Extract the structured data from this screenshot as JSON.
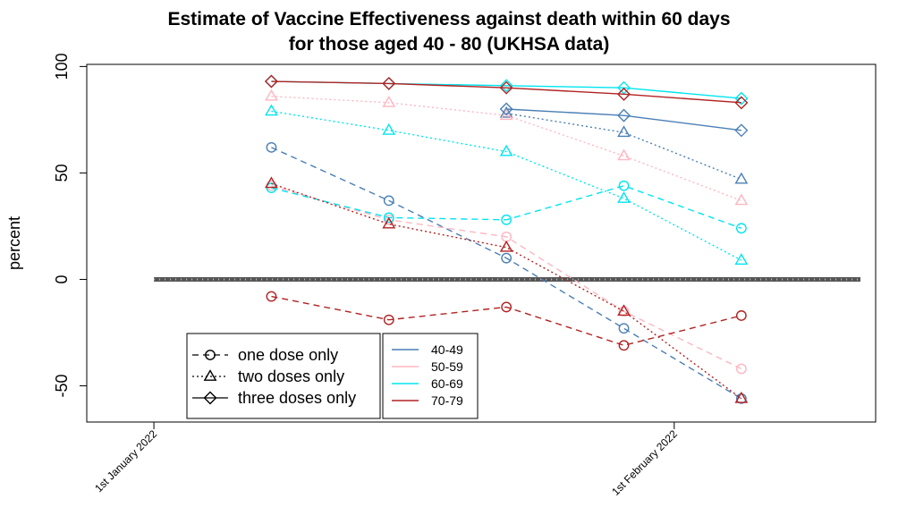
{
  "chart_data": {
    "type": "line",
    "title_line1": "Estimate of Vaccine Effectiveness against death within 60 days",
    "title_line2": "for those aged 40 - 80 (UKHSA data)",
    "ylabel": "percent",
    "xlabel": "",
    "ylim": [
      -67,
      101
    ],
    "yticks": [
      -50,
      0,
      50,
      100
    ],
    "xlim": [
      "2021-12-28",
      "2022-02-13"
    ],
    "xticks": [
      {
        "date": "2022-01-01",
        "label": "1st January 2022"
      },
      {
        "date": "2022-02-01",
        "label": "1st February 2022"
      }
    ],
    "zero_line": 0,
    "age_groups": [
      {
        "name": "40-49",
        "color": "#4a7fb5"
      },
      {
        "name": "50-59",
        "color": "#ffb6c1"
      },
      {
        "name": "60-69",
        "color": "#00e5ee"
      },
      {
        "name": "70-79",
        "color": "#b22222"
      }
    ],
    "dose_types": [
      {
        "name": "one dose only",
        "dash": "dashed",
        "marker": "circle"
      },
      {
        "name": "two doses only",
        "dash": "dotted",
        "marker": "triangle"
      },
      {
        "name": "three doses only",
        "dash": "solid",
        "marker": "diamond"
      }
    ],
    "series": [
      {
        "age": "40-49",
        "dose": "one dose only",
        "x": [
          "2022-01-08",
          "2022-01-15",
          "2022-01-22",
          "2022-01-29",
          "2022-02-05"
        ],
        "values": [
          62,
          37,
          10,
          -23,
          -56
        ]
      },
      {
        "age": "50-59",
        "dose": "one dose only",
        "x": [
          "2022-01-08",
          "2022-01-15",
          "2022-01-22",
          "2022-01-29",
          "2022-02-05"
        ],
        "values": [
          44,
          28,
          20,
          -15,
          -42
        ]
      },
      {
        "age": "60-69",
        "dose": "one dose only",
        "x": [
          "2022-01-08",
          "2022-01-15",
          "2022-01-22",
          "2022-01-29",
          "2022-02-05"
        ],
        "values": [
          43,
          29,
          28,
          44,
          24
        ]
      },
      {
        "age": "70-79",
        "dose": "one dose only",
        "x": [
          "2022-01-08",
          "2022-01-15",
          "2022-01-22",
          "2022-01-29",
          "2022-02-05"
        ],
        "values": [
          -8,
          -19,
          -13,
          -31,
          -17
        ]
      },
      {
        "age": "40-49",
        "dose": "two doses only",
        "x": [
          "2022-01-22",
          "2022-01-29",
          "2022-02-05"
        ],
        "values": [
          78,
          69,
          47
        ]
      },
      {
        "age": "50-59",
        "dose": "two doses only",
        "x": [
          "2022-01-08",
          "2022-01-15",
          "2022-01-22",
          "2022-01-29",
          "2022-02-05"
        ],
        "values": [
          86,
          83,
          77,
          58,
          37
        ]
      },
      {
        "age": "60-69",
        "dose": "two doses only",
        "x": [
          "2022-01-08",
          "2022-01-15",
          "2022-01-22",
          "2022-01-29",
          "2022-02-05"
        ],
        "values": [
          79,
          70,
          60,
          38,
          9
        ]
      },
      {
        "age": "70-79",
        "dose": "two doses only",
        "x": [
          "2022-01-08",
          "2022-01-15",
          "2022-01-22",
          "2022-01-29",
          "2022-02-05"
        ],
        "values": [
          45,
          26,
          15,
          -15,
          -56
        ]
      },
      {
        "age": "40-49",
        "dose": "three doses only",
        "x": [
          "2022-01-22",
          "2022-01-29",
          "2022-02-05"
        ],
        "values": [
          80,
          77,
          70
        ]
      },
      {
        "age": "60-69",
        "dose": "three doses only",
        "x": [
          "2022-01-08",
          "2022-01-15",
          "2022-01-22",
          "2022-01-29",
          "2022-02-05"
        ],
        "values": [
          93,
          92,
          91,
          90,
          85
        ]
      },
      {
        "age": "70-79",
        "dose": "three doses only",
        "x": [
          "2022-01-08",
          "2022-01-15",
          "2022-01-22",
          "2022-01-29",
          "2022-02-05"
        ],
        "values": [
          93,
          92,
          90,
          87,
          83
        ]
      }
    ],
    "legend_placement": "bottom-left, two boxes"
  }
}
